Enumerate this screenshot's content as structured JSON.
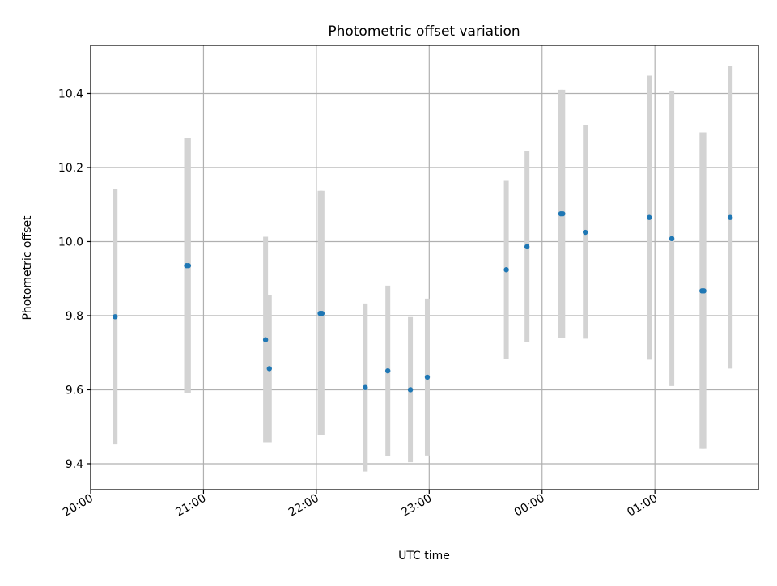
{
  "chart_data": {
    "type": "scatter",
    "title": "Photometric offset variation",
    "xlabel": "UTC time",
    "ylabel": "Photometric offset",
    "x_axis": {
      "kind": "time",
      "start": "20:00",
      "end": "01:55",
      "ticks": [
        "20:00",
        "21:00",
        "22:00",
        "23:00",
        "00:00",
        "01:00"
      ]
    },
    "ylim": [
      9.33,
      10.53
    ],
    "y_ticks": [
      "9.4",
      "9.6",
      "9.8",
      "10.0",
      "10.2",
      "10.4"
    ],
    "grid": true,
    "colors": {
      "point": "#1f77b4",
      "errorbar": "#d3d3d3",
      "grid": "#b0b0b0",
      "axes": "#000000"
    },
    "series": [
      {
        "points": [
          {
            "x": "20:13",
            "y": 9.797,
            "ylow": 9.452,
            "yhigh": 10.142
          },
          {
            "x": "20:51",
            "y": 9.935,
            "ylow": 9.591,
            "yhigh": 10.28
          },
          {
            "x": "20:52",
            "y": 9.935,
            "ylow": 9.591,
            "yhigh": 10.28
          },
          {
            "x": "21:33",
            "y": 9.735,
            "ylow": 9.458,
            "yhigh": 10.013
          },
          {
            "x": "21:35",
            "y": 9.657,
            "ylow": 9.458,
            "yhigh": 9.856
          },
          {
            "x": "22:02",
            "y": 9.806,
            "ylow": 9.477,
            "yhigh": 10.137
          },
          {
            "x": "22:03",
            "y": 9.806,
            "ylow": 9.477,
            "yhigh": 10.137
          },
          {
            "x": "22:26",
            "y": 9.606,
            "ylow": 9.379,
            "yhigh": 9.833
          },
          {
            "x": "22:38",
            "y": 9.651,
            "ylow": 9.421,
            "yhigh": 9.881
          },
          {
            "x": "22:50",
            "y": 9.6,
            "ylow": 9.404,
            "yhigh": 9.796
          },
          {
            "x": "22:59",
            "y": 9.634,
            "ylow": 9.422,
            "yhigh": 9.846
          },
          {
            "x": "23:41",
            "y": 9.924,
            "ylow": 9.684,
            "yhigh": 10.164
          },
          {
            "x": "23:52",
            "y": 9.986,
            "ylow": 9.729,
            "yhigh": 10.244
          },
          {
            "x": "00:10",
            "y": 10.075,
            "ylow": 9.74,
            "yhigh": 10.41
          },
          {
            "x": "00:11",
            "y": 10.075,
            "ylow": 9.74,
            "yhigh": 10.41
          },
          {
            "x": "00:23",
            "y": 10.025,
            "ylow": 9.738,
            "yhigh": 10.315
          },
          {
            "x": "00:57",
            "y": 10.065,
            "ylow": 9.681,
            "yhigh": 10.448
          },
          {
            "x": "01:09",
            "y": 10.008,
            "ylow": 9.61,
            "yhigh": 10.406
          },
          {
            "x": "01:25",
            "y": 9.867,
            "ylow": 9.44,
            "yhigh": 10.295
          },
          {
            "x": "01:26",
            "y": 9.867,
            "ylow": 9.44,
            "yhigh": 10.295
          },
          {
            "x": "01:40",
            "y": 10.065,
            "ylow": 9.657,
            "yhigh": 10.474
          }
        ]
      }
    ]
  }
}
